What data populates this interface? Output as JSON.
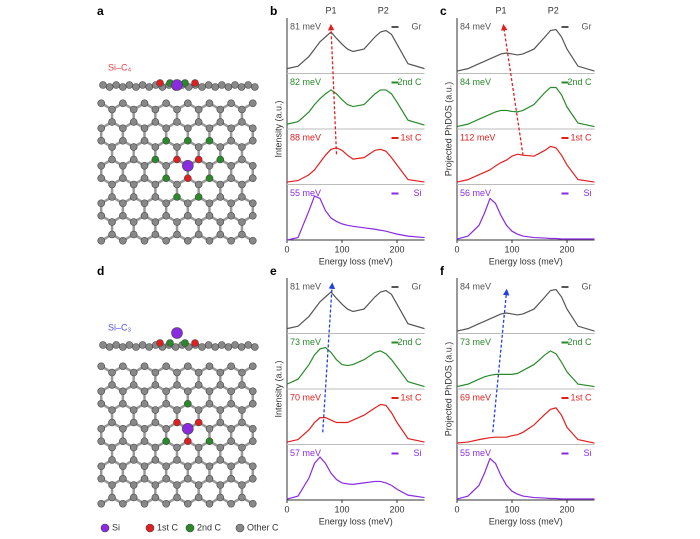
{
  "structures": [
    {
      "panel": "a",
      "label": "Si–C₄"
    },
    {
      "panel": "d",
      "label": "Si–C₃"
    }
  ],
  "legend": [
    "Si",
    "1st C",
    "2nd C",
    "Other C"
  ],
  "chart_data": [
    {
      "type": "line",
      "panel": "b",
      "ylabel": "Intensity (a.u.)",
      "xlabel": "Energy loss (meV)",
      "arrow_color": "#e02020",
      "peak_markers": [
        {
          "label": "P1",
          "x": 80
        },
        {
          "label": "P2",
          "x": 175
        }
      ],
      "x": [
        0,
        20,
        40,
        50,
        60,
        70,
        80,
        90,
        100,
        110,
        120,
        140,
        160,
        170,
        180,
        190,
        200,
        220,
        250
      ],
      "xlim": [
        0,
        250
      ],
      "xticks": [
        0,
        100,
        200
      ],
      "ylim": [
        0,
        1
      ],
      "series": [
        {
          "name": "Gr",
          "color": "#555555",
          "label": "81 meV",
          "values": [
            0.1,
            0.15,
            0.35,
            0.5,
            0.65,
            0.75,
            0.85,
            0.72,
            0.6,
            0.5,
            0.45,
            0.5,
            0.75,
            0.85,
            0.88,
            0.8,
            0.6,
            0.2,
            0.1
          ]
        },
        {
          "name": "2nd C",
          "color": "#2a8a2a",
          "label": "82 meV",
          "values": [
            0.1,
            0.15,
            0.35,
            0.5,
            0.62,
            0.72,
            0.8,
            0.72,
            0.6,
            0.5,
            0.46,
            0.5,
            0.72,
            0.8,
            0.8,
            0.72,
            0.55,
            0.18,
            0.08
          ]
        },
        {
          "name": "1st C",
          "color": "#e02020",
          "label": "88 meV",
          "values": [
            0.05,
            0.08,
            0.2,
            0.3,
            0.45,
            0.6,
            0.72,
            0.75,
            0.7,
            0.6,
            0.52,
            0.55,
            0.7,
            0.72,
            0.68,
            0.55,
            0.4,
            0.1,
            0.05
          ]
        },
        {
          "name": "Si",
          "color": "#8a2be2",
          "label": "55 meV",
          "values": [
            0,
            0.05,
            0.6,
            0.9,
            0.85,
            0.6,
            0.45,
            0.38,
            0.33,
            0.3,
            0.28,
            0.25,
            0.22,
            0.2,
            0.18,
            0.15,
            0.12,
            0.08,
            0.05
          ]
        }
      ]
    },
    {
      "type": "line",
      "panel": "c",
      "ylabel": "Projected PhDOS (a.u.)",
      "xlabel": "Energy loss (meV)",
      "arrow_color": "#e02020",
      "peak_markers": [
        {
          "label": "P1",
          "x": 80
        },
        {
          "label": "P2",
          "x": 175
        }
      ],
      "x": [
        0,
        20,
        40,
        50,
        60,
        70,
        80,
        90,
        100,
        110,
        120,
        140,
        160,
        170,
        180,
        190,
        200,
        220,
        250
      ],
      "xlim": [
        0,
        250
      ],
      "xticks": [
        0,
        100,
        200
      ],
      "ylim": [
        0,
        1
      ],
      "series": [
        {
          "name": "Gr",
          "color": "#555555",
          "label": "84 meV",
          "values": [
            0.05,
            0.1,
            0.2,
            0.25,
            0.3,
            0.35,
            0.4,
            0.42,
            0.4,
            0.38,
            0.4,
            0.5,
            0.75,
            0.88,
            0.9,
            0.75,
            0.5,
            0.15,
            0.05
          ]
        },
        {
          "name": "2nd C",
          "color": "#2a8a2a",
          "label": "84 meV",
          "values": [
            0.05,
            0.1,
            0.2,
            0.25,
            0.3,
            0.35,
            0.38,
            0.38,
            0.36,
            0.35,
            0.38,
            0.5,
            0.75,
            0.85,
            0.85,
            0.7,
            0.45,
            0.12,
            0.05
          ]
        },
        {
          "name": "1st C",
          "color": "#e02020",
          "label": "112 meV",
          "values": [
            0.05,
            0.1,
            0.2,
            0.25,
            0.3,
            0.38,
            0.45,
            0.5,
            0.58,
            0.62,
            0.6,
            0.58,
            0.7,
            0.78,
            0.75,
            0.6,
            0.4,
            0.1,
            0.05
          ]
        },
        {
          "name": "Si",
          "color": "#8a2be2",
          "label": "56 meV",
          "values": [
            0.02,
            0.08,
            0.3,
            0.55,
            0.85,
            0.75,
            0.5,
            0.3,
            0.18,
            0.12,
            0.08,
            0.05,
            0.04,
            0.03,
            0.03,
            0.02,
            0.02,
            0.02,
            0.02
          ]
        }
      ]
    },
    {
      "type": "line",
      "panel": "e",
      "ylabel": "Intensity (a.u.)",
      "xlabel": "Energy loss (meV)",
      "arrow_color": "#2040e0",
      "x": [
        0,
        20,
        40,
        50,
        60,
        70,
        80,
        90,
        100,
        110,
        120,
        140,
        160,
        170,
        180,
        190,
        200,
        220,
        250
      ],
      "xlim": [
        0,
        250
      ],
      "xticks": [
        0,
        100,
        200
      ],
      "ylim": [
        0,
        1
      ],
      "series": [
        {
          "name": "Gr",
          "color": "#555555",
          "label": "81 meV",
          "values": [
            0.1,
            0.15,
            0.35,
            0.5,
            0.65,
            0.75,
            0.85,
            0.72,
            0.6,
            0.5,
            0.45,
            0.5,
            0.75,
            0.85,
            0.88,
            0.8,
            0.6,
            0.2,
            0.1
          ]
        },
        {
          "name": "2nd C",
          "color": "#2a8a2a",
          "label": "73 meV",
          "values": [
            0.1,
            0.2,
            0.5,
            0.7,
            0.82,
            0.85,
            0.75,
            0.6,
            0.5,
            0.48,
            0.5,
            0.6,
            0.75,
            0.78,
            0.72,
            0.6,
            0.45,
            0.15,
            0.05
          ]
        },
        {
          "name": "1st C",
          "color": "#e02020",
          "label": "70 meV",
          "values": [
            0.05,
            0.1,
            0.3,
            0.45,
            0.55,
            0.55,
            0.5,
            0.45,
            0.45,
            0.45,
            0.5,
            0.6,
            0.75,
            0.82,
            0.8,
            0.65,
            0.45,
            0.12,
            0.05
          ]
        },
        {
          "name": "Si",
          "color": "#8a2be2",
          "label": "57 meV",
          "values": [
            0.02,
            0.08,
            0.45,
            0.75,
            0.88,
            0.75,
            0.55,
            0.42,
            0.35,
            0.33,
            0.32,
            0.35,
            0.38,
            0.38,
            0.35,
            0.3,
            0.22,
            0.1,
            0.05
          ]
        }
      ]
    },
    {
      "type": "line",
      "panel": "f",
      "ylabel": "Projected PhDOS (a.u.)",
      "xlabel": "Energy loss (meV)",
      "arrow_color": "#2040e0",
      "x": [
        0,
        20,
        40,
        50,
        60,
        70,
        80,
        90,
        100,
        110,
        120,
        140,
        160,
        170,
        180,
        190,
        200,
        220,
        250
      ],
      "xlim": [
        0,
        250
      ],
      "xticks": [
        0,
        100,
        200
      ],
      "ylim": [
        0,
        1
      ],
      "series": [
        {
          "name": "Gr",
          "color": "#555555",
          "label": "84 meV",
          "values": [
            0.05,
            0.1,
            0.2,
            0.25,
            0.3,
            0.35,
            0.4,
            0.42,
            0.4,
            0.38,
            0.4,
            0.5,
            0.75,
            0.88,
            0.9,
            0.75,
            0.5,
            0.15,
            0.05
          ]
        },
        {
          "name": "2nd C",
          "color": "#2a8a2a",
          "label": "73 meV",
          "values": [
            0.05,
            0.1,
            0.2,
            0.25,
            0.28,
            0.3,
            0.3,
            0.3,
            0.3,
            0.32,
            0.38,
            0.5,
            0.7,
            0.78,
            0.72,
            0.55,
            0.35,
            0.1,
            0.05
          ]
        },
        {
          "name": "1st C",
          "color": "#e02020",
          "label": "69 meV",
          "values": [
            0.03,
            0.05,
            0.1,
            0.12,
            0.14,
            0.15,
            0.15,
            0.15,
            0.18,
            0.2,
            0.25,
            0.4,
            0.62,
            0.72,
            0.75,
            0.6,
            0.35,
            0.1,
            0.03
          ]
        },
        {
          "name": "Si",
          "color": "#8a2be2",
          "label": "55 meV",
          "values": [
            0.02,
            0.08,
            0.3,
            0.55,
            0.85,
            0.75,
            0.5,
            0.3,
            0.18,
            0.12,
            0.08,
            0.05,
            0.04,
            0.03,
            0.03,
            0.02,
            0.02,
            0.02,
            0.02
          ]
        }
      ]
    }
  ]
}
